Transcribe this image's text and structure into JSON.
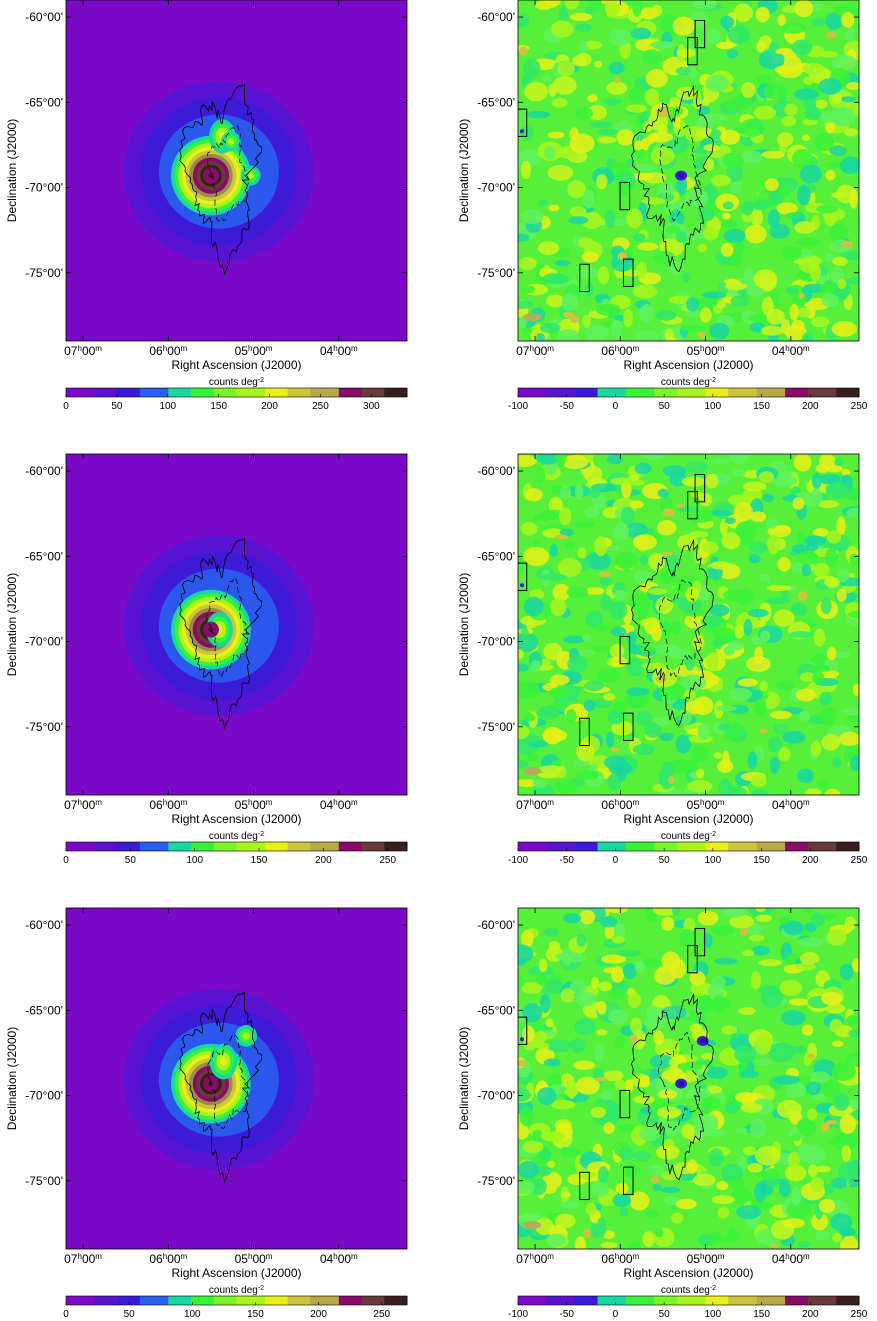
{
  "chart_data": [
    {
      "type": "heatmap",
      "panel": "top-left (model map)",
      "xlabel": "Right Ascension (J2000)",
      "ylabel": "Declination (J2000)",
      "x_ticks": [
        {
          "h": "07",
          "m": "00",
          "ra": 105
        },
        {
          "h": "06",
          "m": "00",
          "ra": 90
        },
        {
          "h": "05",
          "m": "00",
          "ra": 75
        },
        {
          "h": "04",
          "m": "00",
          "ra": 60
        }
      ],
      "y_ticks": [
        {
          "label": "-60°00'",
          "dec": -60
        },
        {
          "label": "-65°00'",
          "dec": -65
        },
        {
          "label": "-70°00'",
          "dec": -70
        },
        {
          "label": "-75°00'",
          "dec": -75
        }
      ],
      "ra_range": [
        108,
        48
      ],
      "dec_range": [
        -79,
        -59
      ],
      "colorbar": {
        "label": "counts deg",
        "unit_exponent": "-2",
        "ticks": [
          "0",
          "50",
          "100",
          "150",
          "200",
          "250",
          "300"
        ],
        "range": [
          0,
          335
        ]
      },
      "sources": [
        {
          "name": "central",
          "ra": 82.5,
          "dec": -69.3,
          "peak": 330
        },
        {
          "name": "north-east lobe",
          "ra": 80.5,
          "dec": -67.0,
          "peak": 110
        },
        {
          "name": "compact east",
          "ra": 79.0,
          "dec": -67.3,
          "peak": 60
        },
        {
          "name": "compact west",
          "ra": 75.5,
          "dec": -69.3,
          "peak": 60
        }
      ]
    },
    {
      "type": "heatmap",
      "panel": "top-right (residual map)",
      "xlabel": "Right Ascension (J2000)",
      "ylabel": "Declination (J2000)",
      "x_ticks": [
        {
          "h": "07",
          "m": "00",
          "ra": 105
        },
        {
          "h": "06",
          "m": "00",
          "ra": 90
        },
        {
          "h": "05",
          "m": "00",
          "ra": 75
        },
        {
          "h": "04",
          "m": "00",
          "ra": 60
        }
      ],
      "y_ticks": [
        {
          "label": "-60°00'",
          "dec": -60
        },
        {
          "label": "-65°00'",
          "dec": -65
        },
        {
          "label": "-70°00'",
          "dec": -70
        },
        {
          "label": "-75°00'",
          "dec": -75
        }
      ],
      "ra_range": [
        108,
        48
      ],
      "dec_range": [
        -79,
        -59
      ],
      "colorbar": {
        "label": "counts deg",
        "unit_exponent": "-2",
        "ticks": [
          "-100",
          "-50",
          "0",
          "50",
          "100",
          "150",
          "200",
          "250"
        ],
        "range": [
          -100,
          250
        ]
      },
      "holes": [
        {
          "ra": 79.3,
          "dec": -69.3
        }
      ]
    },
    {
      "type": "heatmap",
      "panel": "middle-left (model map)",
      "xlabel": "Right Ascension (J2000)",
      "ylabel": "Declination (J2000)",
      "x_ticks": [
        {
          "h": "07",
          "m": "00",
          "ra": 105
        },
        {
          "h": "06",
          "m": "00",
          "ra": 90
        },
        {
          "h": "05",
          "m": "00",
          "ra": 75
        },
        {
          "h": "04",
          "m": "00",
          "ra": 60
        }
      ],
      "y_ticks": [
        {
          "label": "-60°00'",
          "dec": -60
        },
        {
          "label": "-65°00'",
          "dec": -65
        },
        {
          "label": "-70°00'",
          "dec": -70
        },
        {
          "label": "-75°00'",
          "dec": -75
        }
      ],
      "ra_range": [
        108,
        48
      ],
      "dec_range": [
        -79,
        -59
      ],
      "colorbar": {
        "label": "counts deg",
        "unit_exponent": "-2",
        "ticks": [
          "0",
          "50",
          "100",
          "150",
          "200",
          "250"
        ],
        "range": [
          0,
          265
        ]
      },
      "sources": [
        {
          "name": "central",
          "ra": 82.5,
          "dec": -69.3,
          "peak": 260
        },
        {
          "name": "extended halo",
          "ra": 81.0,
          "dec": -69.3,
          "peak": 90
        }
      ]
    },
    {
      "type": "heatmap",
      "panel": "middle-right (residual map)",
      "xlabel": "Right Ascension (J2000)",
      "ylabel": "Declination (J2000)",
      "x_ticks": [
        {
          "h": "07",
          "m": "00",
          "ra": 105
        },
        {
          "h": "06",
          "m": "00",
          "ra": 90
        },
        {
          "h": "05",
          "m": "00",
          "ra": 75
        },
        {
          "h": "04",
          "m": "00",
          "ra": 60
        }
      ],
      "y_ticks": [
        {
          "label": "-60°00'",
          "dec": -60
        },
        {
          "label": "-65°00'",
          "dec": -65
        },
        {
          "label": "-70°00'",
          "dec": -70
        },
        {
          "label": "-75°00'",
          "dec": -75
        }
      ],
      "ra_range": [
        108,
        48
      ],
      "dec_range": [
        -79,
        -59
      ],
      "colorbar": {
        "label": "counts deg",
        "unit_exponent": "-2",
        "ticks": [
          "-100",
          "-50",
          "0",
          "50",
          "100",
          "150",
          "200",
          "250"
        ],
        "range": [
          -100,
          250
        ]
      },
      "holes": []
    },
    {
      "type": "heatmap",
      "panel": "bottom-left (model map)",
      "xlabel": "Right Ascension (J2000)",
      "ylabel": "Declination (J2000)",
      "x_ticks": [
        {
          "h": "07",
          "m": "00",
          "ra": 105
        },
        {
          "h": "06",
          "m": "00",
          "ra": 90
        },
        {
          "h": "05",
          "m": "00",
          "ra": 75
        },
        {
          "h": "04",
          "m": "00",
          "ra": 60
        }
      ],
      "y_ticks": [
        {
          "label": "-60°00'",
          "dec": -60
        },
        {
          "label": "-65°00'",
          "dec": -65
        },
        {
          "label": "-70°00'",
          "dec": -70
        },
        {
          "label": "-75°00'",
          "dec": -75
        }
      ],
      "ra_range": [
        108,
        48
      ],
      "dec_range": [
        -79,
        -59
      ],
      "colorbar": {
        "label": "counts deg",
        "unit_exponent": "-2",
        "ticks": [
          "0",
          "50",
          "100",
          "150",
          "200",
          "250"
        ],
        "range": [
          0,
          270
        ]
      },
      "sources": [
        {
          "name": "central",
          "ra": 82.5,
          "dec": -69.3,
          "peak": 265
        },
        {
          "name": "north-east lobe",
          "ra": 80.3,
          "dec": -68.0,
          "peak": 95
        },
        {
          "name": "compact west",
          "ra": 76.3,
          "dec": -66.5,
          "peak": 60
        }
      ]
    },
    {
      "type": "heatmap",
      "panel": "bottom-right (residual map)",
      "xlabel": "Right Ascension (J2000)",
      "ylabel": "Declination (J2000)",
      "x_ticks": [
        {
          "h": "07",
          "m": "00",
          "ra": 105
        },
        {
          "h": "06",
          "m": "00",
          "ra": 90
        },
        {
          "h": "05",
          "m": "00",
          "ra": 75
        },
        {
          "h": "04",
          "m": "00",
          "ra": 60
        }
      ],
      "y_ticks": [
        {
          "label": "-60°00'",
          "dec": -60
        },
        {
          "label": "-65°00'",
          "dec": -65
        },
        {
          "label": "-70°00'",
          "dec": -70
        },
        {
          "label": "-75°00'",
          "dec": -75
        }
      ],
      "ra_range": [
        108,
        48
      ],
      "dec_range": [
        -79,
        -59
      ],
      "colorbar": {
        "label": "counts deg",
        "unit_exponent": "-2",
        "ticks": [
          "-100",
          "-50",
          "0",
          "50",
          "100",
          "150",
          "200",
          "250"
        ],
        "range": [
          -100,
          250
        ]
      },
      "holes": [
        {
          "ra": 79.3,
          "dec": -69.3
        },
        {
          "ra": 75.5,
          "dec": -66.8
        }
      ]
    }
  ],
  "regions": [
    {
      "ra": 76.0,
      "dec": -61.0,
      "size_deg": 1.6
    },
    {
      "ra": 77.3,
      "dec": -62.0,
      "size_deg": 1.6
    },
    {
      "ra": 107.3,
      "dec": -66.2,
      "size_deg": 1.6
    },
    {
      "ra": 89.2,
      "dec": -70.5,
      "size_deg": 1.6
    },
    {
      "ra": 96.3,
      "dec": -75.3,
      "size_deg": 1.6
    },
    {
      "ra": 88.6,
      "dec": -75.0,
      "size_deg": 1.6
    }
  ],
  "colors": {
    "model_scale": [
      "#7a0ac8",
      "#3a1cd8",
      "#2a5ef0",
      "#18d7a0",
      "#39f239",
      "#a8f41c",
      "#e8f018",
      "#ccc43c",
      "#9c8a46",
      "#8a0a6a",
      "#6a3a3a",
      "#3a1e1e"
    ],
    "residual_scale": [
      "#7a0ac8",
      "#3a1cd8",
      "#18d7a0",
      "#39f239",
      "#a8f41c",
      "#e8f018",
      "#ccc43c",
      "#8a0a6a",
      "#6a3a3a",
      "#3a1e1e"
    ]
  }
}
